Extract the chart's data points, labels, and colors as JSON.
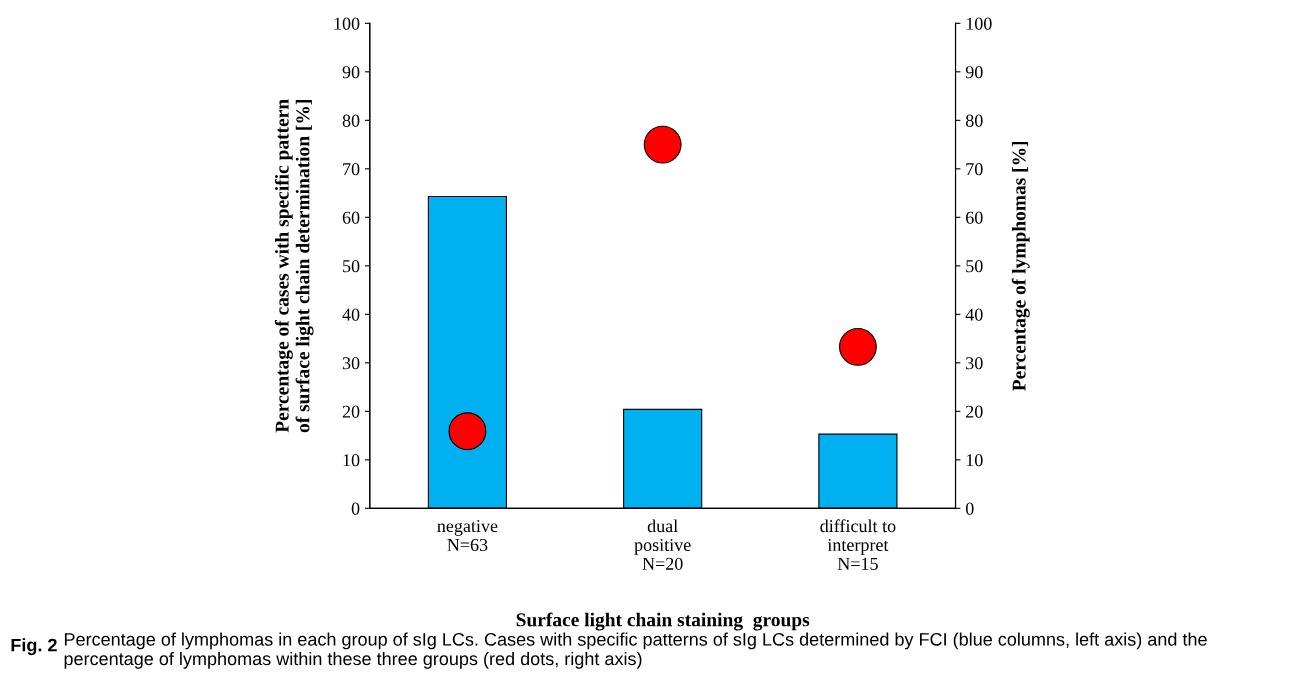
{
  "chart_data": {
    "type": "bar",
    "categories": [
      "negative\nN=63",
      "dual\npositive\nN=20",
      "difficult to\ninterpret\nN=15"
    ],
    "xlabel": "Surface light chain staining  groups",
    "ylabel": "Percentage of cases with specific pattern\nof surface light chain determination [%]",
    "y2label": "Percentage of lymphomas [%]",
    "series": [
      {
        "color": "#00b0f0",
        "values": [
          64.3,
          20.4,
          15.3
        ]
      },
      {
        "type": "scatter",
        "axis": "y2",
        "color": "#ff0000",
        "marker": "circle",
        "values": [
          15.9,
          75.0,
          33.3
        ]
      }
    ],
    "ylim": [
      0,
      100
    ],
    "yticks": [
      0,
      10,
      20,
      30,
      40,
      50,
      60,
      70,
      80,
      90,
      100
    ],
    "y2lim": [
      0,
      100
    ],
    "y2ticks": [
      0,
      10,
      20,
      30,
      40,
      50,
      60,
      70,
      80,
      90,
      100
    ],
    "grid": false,
    "legend": false,
    "annotations": [
      "Fig. 2",
      "Percentage of lymphomas in each group of sIg LCs. Cases with specific patterns of sIg LCs determined by FCI (blue columns, left axis) and the percentage of lymphomas within these three groups (red dots, right axis)"
    ]
  }
}
